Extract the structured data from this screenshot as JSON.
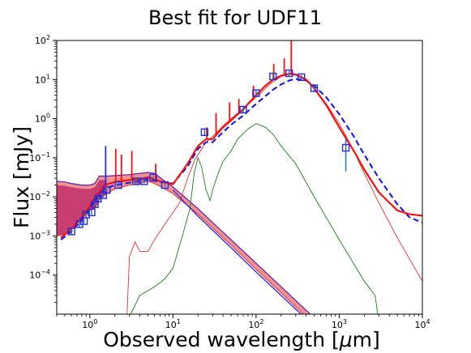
{
  "chart_data": {
    "type": "line",
    "title": "Best fit for UDF11",
    "xlabel_prefix": "Observed wavelength [",
    "xlabel_mu": "μ",
    "xlabel_suffix": "m]",
    "ylabel": "Flux [mJy]",
    "xscale": "log",
    "yscale": "log",
    "xlim": [
      0.4,
      10000
    ],
    "ylim": [
      1e-05,
      100
    ],
    "x_ticks": [
      {
        "value": 1,
        "base": "10",
        "exp": "0"
      },
      {
        "value": 10,
        "base": "10",
        "exp": "1"
      },
      {
        "value": 100,
        "base": "10",
        "exp": "2"
      },
      {
        "value": 1000,
        "base": "10",
        "exp": "3"
      },
      {
        "value": 10000,
        "base": "10",
        "exp": "4"
      }
    ],
    "y_ticks": [
      {
        "value": 0.0001,
        "base": "10",
        "exp": "−4"
      },
      {
        "value": 0.001,
        "base": "10",
        "exp": "−3"
      },
      {
        "value": 0.01,
        "base": "10",
        "exp": "−2"
      },
      {
        "value": 0.1,
        "base": "10",
        "exp": "−1"
      },
      {
        "value": 1,
        "base": "10",
        "exp": "0"
      },
      {
        "value": 10,
        "base": "10",
        "exp": "1"
      },
      {
        "value": 100,
        "base": "10",
        "exp": "2"
      }
    ],
    "colors": {
      "red": "#f21111",
      "blue_dashed": "#1010e0",
      "green": "#1f7d1f",
      "thin_red": "#e83232",
      "stellar_fill": "#c0306a",
      "stellar_band": "#f08080",
      "purple_edge": "#5a1fb0",
      "blue_line": "#2a2af0",
      "obs_marker": "#2a2ad8",
      "errorbar": "#1f77b4"
    },
    "series": [
      {
        "key": "total_sed",
        "style": "solid-red-thick",
        "x": [
          0.45,
          0.6,
          0.8,
          1.0,
          1.2,
          1.5,
          2,
          3,
          4,
          5,
          7,
          10,
          15,
          20,
          25,
          30,
          40,
          50,
          60,
          70,
          80,
          100,
          130,
          160,
          200,
          250,
          300,
          400,
          500,
          700,
          1000,
          1500,
          2000,
          3000,
          5000,
          7000,
          10000
        ],
        "y": [
          0.0009,
          0.0015,
          0.003,
          0.006,
          0.011,
          0.02,
          0.024,
          0.027,
          0.028,
          0.032,
          0.025,
          0.021,
          0.07,
          0.2,
          0.3,
          0.3,
          0.6,
          0.9,
          1.3,
          1.7,
          2.4,
          4.0,
          7.0,
          10.0,
          12.5,
          14.0,
          13.5,
          10.0,
          6.0,
          2.2,
          0.6,
          0.15,
          0.05,
          0.013,
          0.0045,
          0.0036,
          0.0033
        ]
      },
      {
        "key": "alt_fit",
        "style": "dashed-blue",
        "x": [
          0.45,
          0.6,
          0.8,
          1.0,
          1.2,
          1.5,
          2,
          3,
          4,
          5,
          7,
          10,
          15,
          20,
          25,
          30,
          40,
          50,
          70,
          100,
          130,
          160,
          200,
          250,
          300,
          400,
          500,
          700,
          1000,
          1500,
          2000,
          3000,
          5000,
          7000,
          10000
        ],
        "y": [
          0.0008,
          0.0013,
          0.0025,
          0.005,
          0.009,
          0.016,
          0.02,
          0.023,
          0.025,
          0.028,
          0.024,
          0.022,
          0.06,
          0.17,
          0.25,
          0.25,
          0.45,
          0.7,
          1.2,
          2.4,
          3.8,
          5.5,
          7.5,
          9.5,
          10.5,
          9.5,
          7.0,
          3.5,
          1.3,
          0.35,
          0.12,
          0.03,
          0.0065,
          0.003,
          0.0022
        ]
      },
      {
        "key": "dust_component",
        "style": "thin-green",
        "x": [
          3.1,
          4,
          6,
          8,
          10,
          13,
          16,
          18,
          20,
          22,
          25,
          28,
          30,
          35,
          40,
          50,
          60,
          80,
          100,
          130,
          160,
          200,
          300,
          500,
          1000,
          2000,
          2700,
          2900
        ],
        "y": [
          1e-05,
          3e-05,
          5e-05,
          8e-05,
          0.00015,
          0.001,
          0.005,
          0.04,
          0.1,
          0.06,
          0.015,
          0.008,
          0.015,
          0.04,
          0.08,
          0.15,
          0.3,
          0.55,
          0.75,
          0.6,
          0.4,
          0.2,
          0.07,
          0.01,
          0.0008,
          7e-05,
          3e-05,
          1e-05
        ]
      },
      {
        "key": "unattenuated_component",
        "style": "thin-red",
        "x": [
          2.8,
          3,
          3.5,
          4,
          5,
          6,
          8,
          10,
          12,
          15,
          18,
          20,
          25,
          30,
          40,
          50,
          70,
          100,
          150,
          200,
          250,
          300,
          400,
          500,
          700,
          1000,
          1500,
          2000,
          3000,
          5000,
          7000,
          10000
        ],
        "y": [
          1e-05,
          0.0003,
          0.0007,
          0.0004,
          0.0004,
          0.0008,
          0.002,
          0.004,
          0.007,
          0.03,
          0.08,
          0.12,
          0.25,
          0.35,
          0.65,
          1.0,
          1.8,
          3.5,
          8.0,
          12.0,
          13.5,
          13.0,
          9.5,
          6.0,
          2.4,
          0.75,
          0.15,
          0.04,
          0.007,
          0.0009,
          0.00026,
          7e-05
        ]
      },
      {
        "key": "stellar_blue",
        "style": "thin-blue",
        "x": [
          10,
          15,
          20,
          30,
          50,
          100,
          200,
          400,
          600
        ],
        "y": [
          0.015,
          0.006,
          0.0032,
          0.0014,
          0.0005,
          0.00012,
          3e-05,
          7.5e-06,
          3.3e-06
        ]
      }
    ],
    "stellar_band": {
      "x": [
        0.4,
        0.5,
        0.6,
        0.8,
        1.0,
        1.15,
        1.3,
        1.6,
        2,
        3,
        4,
        5,
        6,
        8,
        10,
        15,
        20,
        30,
        50,
        100,
        200,
        400,
        700
      ],
      "y_low": [
        0.001,
        0.0011,
        0.0015,
        0.0027,
        0.0045,
        0.005,
        0.0085,
        0.012,
        0.016,
        0.02,
        0.022,
        0.025,
        0.022,
        0.016,
        0.012,
        0.006,
        0.0036,
        0.0016,
        0.00058,
        0.00014,
        3.5e-05,
        8.5e-06,
        2.8e-06
      ],
      "y_high": [
        0.025,
        0.024,
        0.022,
        0.02,
        0.02,
        0.022,
        0.034,
        0.034,
        0.035,
        0.037,
        0.04,
        0.042,
        0.04,
        0.025,
        0.018,
        0.0085,
        0.005,
        0.0022,
        0.0008,
        0.0002,
        5e-05,
        1.25e-05,
        4.2e-06
      ]
    },
    "emission_lines": [
      {
        "x": 1.55,
        "y_peak": 0.2,
        "color": "blue"
      },
      {
        "x": 2.05,
        "y_peak": 0.17,
        "color": "red"
      },
      {
        "x": 2.4,
        "y_peak": 0.12,
        "color": "red"
      },
      {
        "x": 3.2,
        "y_peak": 0.15,
        "color": "red"
      },
      {
        "x": 6.2,
        "y_peak": 0.07,
        "color": "red"
      },
      {
        "x": 25.5,
        "y_peak": 0.6,
        "color": "red"
      },
      {
        "x": 33,
        "y_peak": 1.4,
        "color": "red"
      },
      {
        "x": 48,
        "y_peak": 2.6,
        "color": "red"
      },
      {
        "x": 62,
        "y_peak": 3.2,
        "color": "red"
      },
      {
        "x": 93,
        "y_peak": 7.0,
        "color": "red"
      },
      {
        "x": 163,
        "y_peak": 25.0,
        "color": "red"
      },
      {
        "x": 218,
        "y_peak": 35.0,
        "color": "red"
      },
      {
        "x": 265,
        "y_peak": 100.0,
        "color": "red"
      }
    ],
    "observations": {
      "x": [
        0.6,
        0.75,
        0.85,
        0.9,
        1.05,
        1.15,
        1.25,
        1.45,
        1.6,
        2.2,
        3.6,
        4.5,
        5.8,
        8.0,
        24,
        70,
        100,
        160,
        250,
        350,
        500,
        1200
      ],
      "y": [
        0.0013,
        0.002,
        0.0024,
        0.0035,
        0.004,
        0.0065,
        0.009,
        0.011,
        0.015,
        0.02,
        0.025,
        0.025,
        0.031,
        0.02,
        0.45,
        1.7,
        4.5,
        12.0,
        14.5,
        11.5,
        6.0,
        0.18
      ],
      "err_low": [
        0.0011,
        0.0017,
        0.0021,
        0.003,
        0.0035,
        0.0058,
        0.008,
        0.0098,
        0.0135,
        0.018,
        0.022,
        0.022,
        0.028,
        0.018,
        0.38,
        1.4,
        3.8,
        10.0,
        12.5,
        10.0,
        5.0,
        0.045
      ],
      "err_high": [
        0.0015,
        0.0023,
        0.0027,
        0.004,
        0.0045,
        0.0072,
        0.01,
        0.0122,
        0.0165,
        0.022,
        0.028,
        0.028,
        0.034,
        0.022,
        0.52,
        2.0,
        5.2,
        14.0,
        16.5,
        13.0,
        7.0,
        0.32
      ]
    },
    "grid": false,
    "legend": "none"
  }
}
